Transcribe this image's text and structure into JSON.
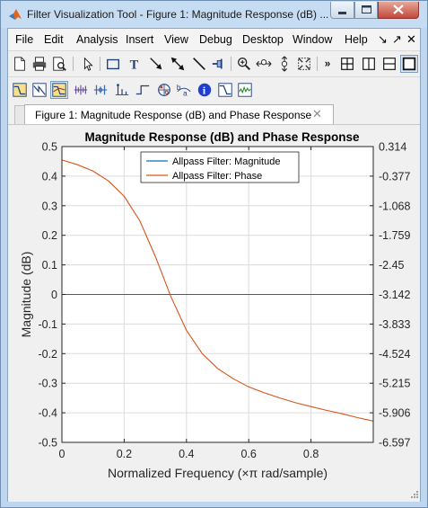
{
  "window": {
    "title": "Filter Visualization Tool - Figure 1: Magnitude Response (dB) ..."
  },
  "menubar": {
    "items": [
      "File",
      "Edit",
      "Analysis",
      "Insert",
      "View",
      "Debug",
      "Desktop",
      "Window",
      "Help"
    ],
    "right_glyphs": [
      "↘",
      "↗",
      "✕"
    ]
  },
  "toolbar_top": {
    "icons": [
      "new-file-icon",
      "print-icon",
      "print-preview-icon",
      "pointer-icon",
      "rectangle-icon",
      "text-icon",
      "arrow-icon",
      "double-arrow-icon",
      "line-icon",
      "pin-icon",
      "zoom-in-icon",
      "zoom-x-icon",
      "zoom-y-icon",
      "zoom-fit-icon",
      "more-icon",
      "grid-layout-icon",
      "column-layout-icon",
      "row-layout-icon",
      "single-layout-icon"
    ]
  },
  "toolbar_analysis": {
    "icons": [
      "magnitude-response-icon",
      "phase-response-icon",
      "magnitude-phase-icon",
      "group-delay-icon",
      "phase-delay-icon",
      "impulse-response-icon",
      "step-response-icon",
      "pole-zero-icon",
      "filter-coefficients-icon",
      "info-icon",
      "magnitude-estimate-icon",
      "noise-power-icon"
    ]
  },
  "tab": {
    "label": "Figure 1: Magnitude Response (dB) and Phase Response",
    "close_glyph": "✕"
  },
  "colors": {
    "magnitude": "#0072bd",
    "phase": "#d95319",
    "grid": "#dcdcdc",
    "axes": "#262626"
  },
  "chart_data": {
    "type": "line",
    "title": "Magnitude Response (dB) and Phase Response",
    "xlabel": "Normalized Frequency (×π rad/sample)",
    "ylabel": "Magnitude (dB)",
    "xlim": [
      0,
      1
    ],
    "ylim": [
      -0.5,
      0.5
    ],
    "x_ticks": [
      "0",
      "0.2",
      "0.4",
      "0.6",
      "0.8"
    ],
    "y_ticks": [
      "0.5",
      "0.4",
      "0.3",
      "0.2",
      "0.1",
      "0",
      "-0.1",
      "-0.2",
      "-0.3",
      "-0.4",
      "-0.5"
    ],
    "y2_ticks": [
      "0.314",
      "-0.377",
      "-1.068",
      "-1.759",
      "-2.45",
      "-3.142",
      "-3.833",
      "-4.524",
      "-5.215",
      "-5.906",
      "-6.597"
    ],
    "y2lim": [
      -6.597,
      0.314
    ],
    "grid": true,
    "legend_position": "top-center",
    "series": [
      {
        "name": "Allpass Filter: Magnitude",
        "axis": "left",
        "x": [
          0,
          1
        ],
        "y": [
          0,
          0
        ]
      },
      {
        "name": "Allpass Filter: Phase",
        "axis": "right",
        "x": [
          0,
          0.05,
          0.1,
          0.15,
          0.2,
          0.25,
          0.3,
          0.35,
          0.4,
          0.45,
          0.5,
          0.55,
          0.6,
          0.65,
          0.7,
          0.75,
          0.8,
          0.85,
          0.9,
          0.95,
          1.0
        ],
        "y": [
          0.0,
          -0.11,
          -0.26,
          -0.49,
          -0.85,
          -1.42,
          -2.25,
          -3.19,
          -3.98,
          -4.52,
          -4.87,
          -5.11,
          -5.3,
          -5.44,
          -5.56,
          -5.67,
          -5.76,
          -5.85,
          -5.93,
          -6.02,
          -6.1
        ]
      }
    ]
  }
}
